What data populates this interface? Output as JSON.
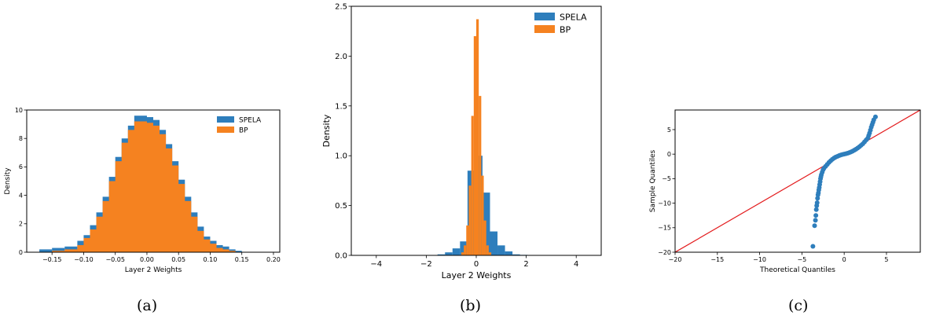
{
  "colors": {
    "spela": "#2e7ebc",
    "bp": "#f58220",
    "qq_points": "#2e7ebc",
    "qq_line": "#e31a1c"
  },
  "captions": {
    "a": "(a)",
    "b": "(b)",
    "c": "(c)"
  },
  "chart_data": [
    {
      "type": "histogram",
      "panel": "a",
      "xlabel": "Layer 2 Weights",
      "ylabel": "Density",
      "xlim": [
        -0.19,
        0.21
      ],
      "ylim": [
        0,
        10
      ],
      "xticks": [
        -0.15,
        -0.1,
        -0.05,
        0.0,
        0.05,
        0.1,
        0.15,
        0.2
      ],
      "xtick_labels": [
        "−0.15",
        "−0.10",
        "−0.05",
        "0.00",
        "0.05",
        "0.10",
        "0.15",
        "0.20"
      ],
      "yticks": [
        0,
        2,
        4,
        6,
        8,
        10
      ],
      "ytick_labels": [
        "0",
        "2",
        "4",
        "6",
        "8",
        "10"
      ],
      "legend_position": "top-right",
      "series": [
        {
          "name": "SPELA",
          "x": [
            -0.16,
            -0.14,
            -0.12,
            -0.1,
            -0.09,
            -0.08,
            -0.07,
            -0.06,
            -0.05,
            -0.04,
            -0.03,
            -0.02,
            -0.01,
            0.0,
            0.01,
            0.02,
            0.03,
            0.04,
            0.05,
            0.06,
            0.07,
            0.08,
            0.09,
            0.1,
            0.11,
            0.12,
            0.13,
            0.14
          ],
          "density": [
            0.2,
            0.3,
            0.4,
            0.8,
            1.2,
            1.9,
            2.8,
            3.9,
            5.3,
            6.7,
            8.0,
            8.9,
            9.6,
            9.5,
            9.3,
            8.6,
            7.6,
            6.4,
            5.1,
            3.9,
            2.8,
            1.8,
            1.1,
            0.8,
            0.5,
            0.4,
            0.2,
            0.1
          ]
        },
        {
          "name": "BP",
          "x": [
            -0.16,
            -0.14,
            -0.12,
            -0.1,
            -0.09,
            -0.08,
            -0.07,
            -0.06,
            -0.05,
            -0.04,
            -0.03,
            -0.02,
            -0.01,
            0.0,
            0.01,
            0.02,
            0.03,
            0.04,
            0.05,
            0.06,
            0.07,
            0.08,
            0.09,
            0.1,
            0.11,
            0.12,
            0.13,
            0.14
          ],
          "density": [
            0.0,
            0.1,
            0.2,
            0.5,
            1.0,
            1.6,
            2.5,
            3.6,
            5.0,
            6.4,
            7.7,
            8.6,
            9.2,
            9.1,
            8.9,
            8.3,
            7.3,
            6.1,
            4.8,
            3.6,
            2.5,
            1.5,
            0.9,
            0.6,
            0.3,
            0.2,
            0.1,
            0.0
          ]
        }
      ]
    },
    {
      "type": "histogram",
      "panel": "b",
      "xlabel": "Layer 2 Weights",
      "ylabel": "Density",
      "xlim": [
        -5,
        5
      ],
      "ylim": [
        0,
        2.5
      ],
      "xticks": [
        -4,
        -2,
        0,
        2,
        4
      ],
      "xtick_labels": [
        "−4",
        "−2",
        "0",
        "2",
        "4"
      ],
      "yticks": [
        0.0,
        0.5,
        1.0,
        1.5,
        2.0,
        2.5
      ],
      "ytick_labels": [
        "0.0",
        "0.5",
        "1.0",
        "1.5",
        "2.0",
        "2.5"
      ],
      "legend_position": "top-right",
      "series": [
        {
          "name": "SPELA",
          "x": [
            -1.4,
            -1.1,
            -0.8,
            -0.5,
            -0.2,
            0.1,
            0.4,
            0.7,
            1.0,
            1.3,
            1.6,
            1.9
          ],
          "density": [
            0.01,
            0.03,
            0.07,
            0.14,
            0.85,
            1.0,
            0.63,
            0.24,
            0.1,
            0.04,
            0.01,
            0.005
          ]
        },
        {
          "name": "BP",
          "x": [
            -0.55,
            -0.45,
            -0.35,
            -0.25,
            -0.15,
            -0.05,
            0.05,
            0.15,
            0.25,
            0.35,
            0.45,
            0.55
          ],
          "density": [
            0.03,
            0.1,
            0.3,
            0.7,
            1.4,
            2.2,
            2.37,
            1.6,
            0.8,
            0.35,
            0.1,
            0.03
          ]
        }
      ]
    },
    {
      "type": "scatter",
      "panel": "c",
      "xlabel": "Theoretical Quantiles",
      "ylabel": "Sample Quantiles",
      "xlim": [
        -20,
        9
      ],
      "ylim": [
        -20,
        9
      ],
      "xticks": [
        -20,
        -15,
        -10,
        -5,
        0,
        5
      ],
      "xtick_labels": [
        "−20",
        "−15",
        "−10",
        "−5",
        "0",
        "5"
      ],
      "yticks": [
        -20,
        -15,
        -10,
        -5,
        0,
        5
      ],
      "ytick_labels": [
        "−20",
        "−15",
        "−10",
        "−5",
        "0",
        "5"
      ],
      "points": [
        [
          -3.7,
          -18.8
        ],
        [
          -3.5,
          -14.6
        ],
        [
          -3.4,
          -13.5
        ],
        [
          -3.35,
          -12.5
        ],
        [
          -3.3,
          -11.3
        ],
        [
          -3.25,
          -10.5
        ],
        [
          -3.2,
          -9.9
        ],
        [
          -3.15,
          -9.0
        ],
        [
          -3.1,
          -8.3
        ],
        [
          -3.05,
          -7.9
        ],
        [
          -3.0,
          -7.3
        ],
        [
          -2.95,
          -6.8
        ],
        [
          -2.9,
          -6.2
        ],
        [
          -2.85,
          -5.6
        ],
        [
          -2.8,
          -5.0
        ],
        [
          -2.75,
          -4.6
        ],
        [
          -2.7,
          -4.2
        ],
        [
          -2.6,
          -3.7
        ],
        [
          -2.5,
          -3.2
        ],
        [
          -2.4,
          -2.9
        ],
        [
          -2.2,
          -2.5
        ],
        [
          -2.0,
          -2.1
        ],
        [
          -1.8,
          -1.7
        ],
        [
          -1.6,
          -1.35
        ],
        [
          -1.4,
          -1.05
        ],
        [
          -1.2,
          -0.8
        ],
        [
          -1.0,
          -0.6
        ],
        [
          -0.8,
          -0.45
        ],
        [
          -0.6,
          -0.3
        ],
        [
          -0.4,
          -0.18
        ],
        [
          -0.2,
          -0.08
        ],
        [
          0.0,
          0.0
        ],
        [
          0.2,
          0.08
        ],
        [
          0.4,
          0.18
        ],
        [
          0.6,
          0.3
        ],
        [
          0.8,
          0.45
        ],
        [
          1.0,
          0.6
        ],
        [
          1.2,
          0.8
        ],
        [
          1.4,
          1.0
        ],
        [
          1.6,
          1.25
        ],
        [
          1.8,
          1.5
        ],
        [
          2.0,
          1.8
        ],
        [
          2.2,
          2.1
        ],
        [
          2.4,
          2.5
        ],
        [
          2.6,
          2.9
        ],
        [
          2.8,
          3.3
        ],
        [
          2.9,
          3.8
        ],
        [
          3.0,
          4.3
        ],
        [
          3.1,
          4.9
        ],
        [
          3.2,
          5.5
        ],
        [
          3.3,
          6.0
        ],
        [
          3.4,
          6.5
        ],
        [
          3.5,
          7.0
        ],
        [
          3.7,
          7.6
        ]
      ],
      "reference_line": [
        [
          -20,
          -20
        ],
        [
          9,
          9
        ]
      ]
    }
  ]
}
